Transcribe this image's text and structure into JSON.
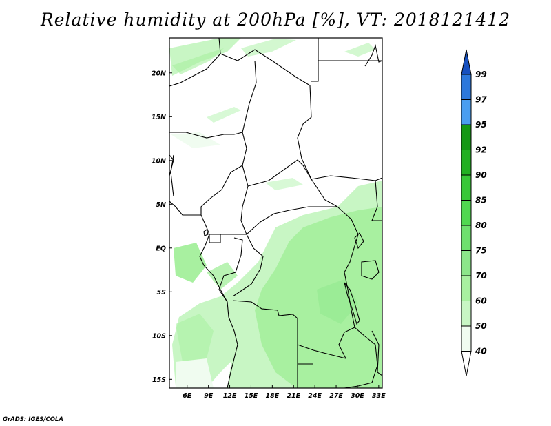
{
  "title": "Relative humidity at 200hPa [%], VT: 2018121412",
  "credit": "GrADS: IGES/COLA",
  "colors": {
    "land_border": "#000000",
    "rh_40_50": "#f0fcf0",
    "rh_50_60": "#c8f6c4",
    "rh_60_70": "#a8f0a0"
  },
  "chart_data": {
    "type": "heatmap",
    "title": "Relative humidity at 200hPa [%], VT: 2018121412",
    "variable": "Relative humidity",
    "level": "200hPa",
    "units": "%",
    "valid_time": "2018121412",
    "lon_range": [
      3.5,
      33.5
    ],
    "lat_range": [
      -16,
      24
    ],
    "x_ticks": [
      {
        "value": 6,
        "label": "6E"
      },
      {
        "value": 9,
        "label": "9E"
      },
      {
        "value": 12,
        "label": "12E"
      },
      {
        "value": 15,
        "label": "15E"
      },
      {
        "value": 18,
        "label": "18E"
      },
      {
        "value": 21,
        "label": "21E"
      },
      {
        "value": 24,
        "label": "24E"
      },
      {
        "value": 27,
        "label": "27E"
      },
      {
        "value": 30,
        "label": "30E"
      },
      {
        "value": 33,
        "label": "33E"
      }
    ],
    "y_ticks": [
      {
        "value": 20,
        "label": "20N"
      },
      {
        "value": 15,
        "label": "15N"
      },
      {
        "value": 10,
        "label": "10N"
      },
      {
        "value": 5,
        "label": "5N"
      },
      {
        "value": 0,
        "label": "EQ"
      },
      {
        "value": -5,
        "label": "5S"
      },
      {
        "value": -10,
        "label": "10S"
      },
      {
        "value": -15,
        "label": "15S"
      }
    ],
    "colorbar": {
      "levels": [
        "40",
        "50",
        "60",
        "70",
        "75",
        "80",
        "85",
        "90",
        "92",
        "95",
        "97",
        "99"
      ],
      "colors": [
        "#f0fcf0",
        "#c8f6c4",
        "#a8f0a0",
        "#8ce68a",
        "#6ee06e",
        "#50d850",
        "#38c838",
        "#22b022",
        "#149814",
        "#4a9ef0",
        "#2c78dc",
        "#1650c0"
      ],
      "extend": "both"
    }
  }
}
